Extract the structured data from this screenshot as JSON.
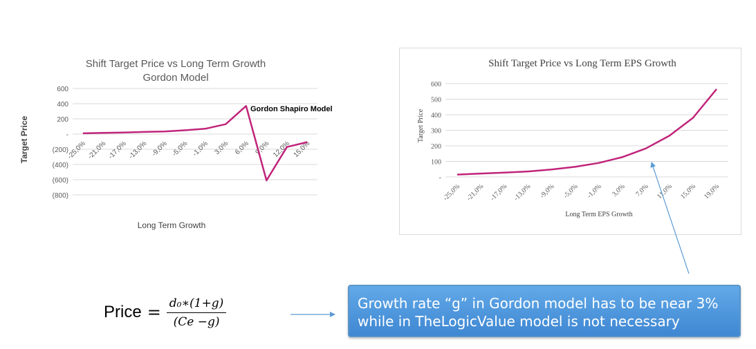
{
  "chart_data": [
    {
      "type": "line",
      "title": "Shift Target Price vs Long Term Growth",
      "subtitle": "Gordon Model",
      "xlabel": "Long Term Growth",
      "ylabel": "Target Price",
      "categories": [
        "-25,0%",
        "-21,0%",
        "-17,0%",
        "-13,0%",
        "-9,0%",
        "-5,0%",
        "-1,0%",
        "3,0%",
        "6,0%",
        "9,0%",
        "12,0%",
        "15,0%"
      ],
      "y_tick_labels": [
        "600",
        "400",
        "200",
        "-",
        "(200)",
        "(400)",
        "(600)",
        "(800)"
      ],
      "ylim": [
        -800,
        600
      ],
      "grid": true,
      "series": [
        {
          "name": "Gordon Shapiro Model",
          "values": [
            10,
            15,
            20,
            28,
            35,
            50,
            70,
            130,
            370,
            -610,
            -170,
            -105
          ],
          "color": "#c0247a"
        }
      ]
    },
    {
      "type": "line",
      "title": "Shift Target Price vs Long Term EPS Growth",
      "xlabel": "Long Term EPS Growth",
      "ylabel": "Target Price",
      "categories": [
        "-25,0%",
        "-21,0%",
        "-17,0%",
        "-13,0%",
        "-9,0%",
        "-5,0%",
        "-1,0%",
        "3,0%",
        "7,0%",
        "11,0%",
        "15,0%",
        "19,0%"
      ],
      "y_tick_labels": [
        "600",
        "500",
        "400",
        "300",
        "200",
        "100",
        "-"
      ],
      "ylim": [
        0,
        600
      ],
      "grid": true,
      "series": [
        {
          "values": [
            15,
            22,
            28,
            35,
            48,
            65,
            90,
            127,
            183,
            265,
            380,
            565
          ],
          "color": "#c0247a"
        }
      ]
    }
  ],
  "formula": {
    "word": "Price",
    "equals": "=",
    "numerator": "d₀∗(1+g)",
    "denominator": "(Ce −g)"
  },
  "callout": {
    "line1": "Growth rate “g” in Gordon model has to be near 3%",
    "line2": "while in TheLogicValue model is not necessary"
  },
  "colors": {
    "series": "#c0247a",
    "arrow": "#5b9bd5",
    "box_top": "#62a9e8",
    "box_bottom": "#3f87d2"
  }
}
